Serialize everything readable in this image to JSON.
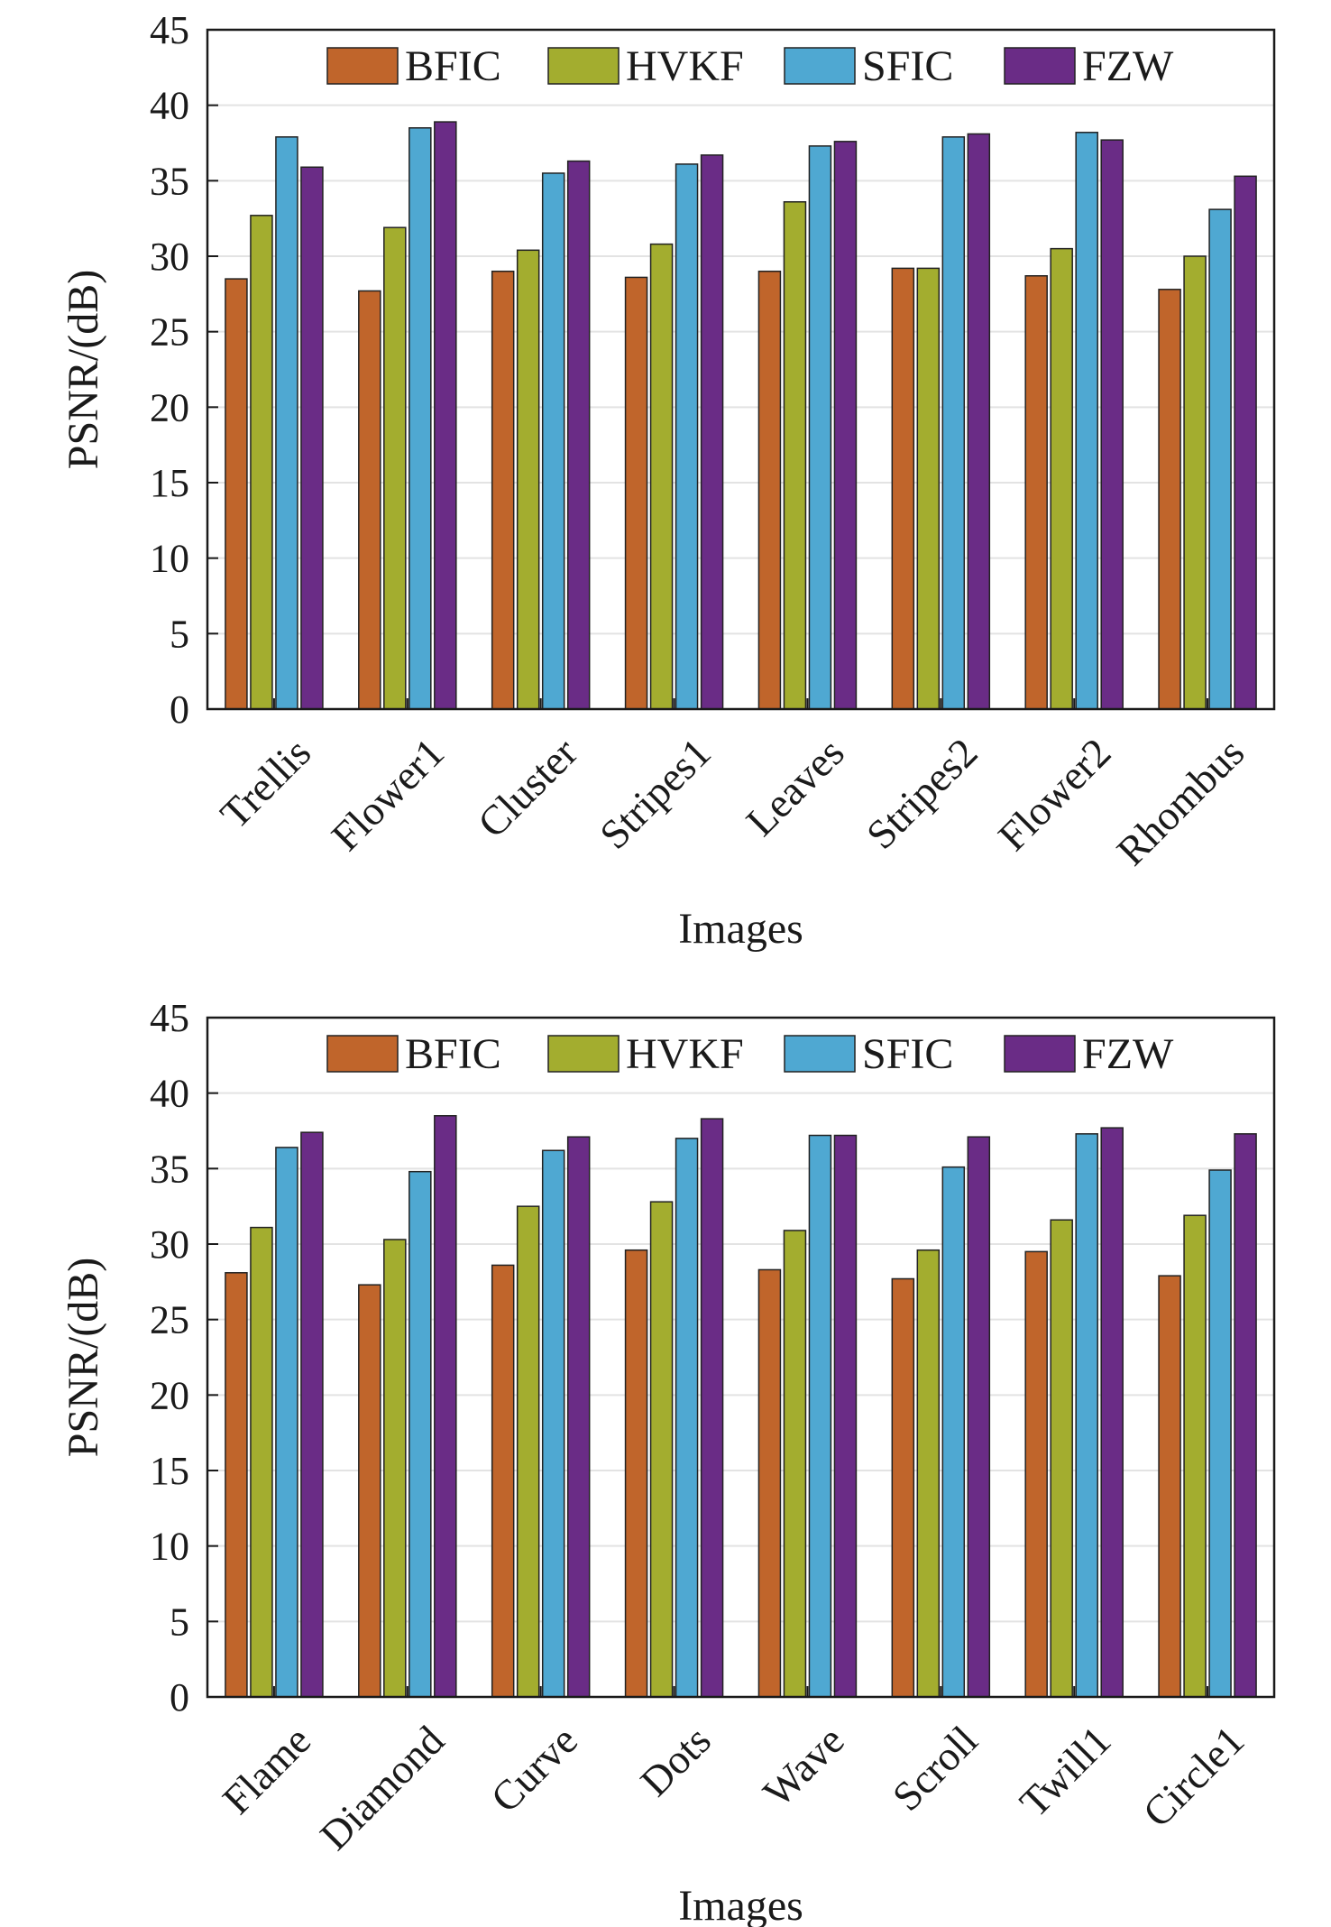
{
  "colors": {
    "BFIC": "#c0652b",
    "HVKF": "#a3ad2f",
    "SFIC": "#4fa8d2",
    "FZW": "#6a2c86",
    "grid": "#e3e3e3",
    "axis": "#1a1a1a"
  },
  "chart_data": [
    {
      "type": "bar",
      "title": "",
      "xlabel": "Images",
      "ylabel": "PSNR/(dB)",
      "ylim": [
        0,
        45
      ],
      "yticks": [
        "0",
        "5",
        "10",
        "15",
        "20",
        "25",
        "30",
        "35",
        "40",
        "45"
      ],
      "grid": "horizontal",
      "legend_position": "top",
      "categories": [
        "Trellis",
        "Flower1",
        "Cluster",
        "Stripes1",
        "Leaves",
        "Stripes2",
        "Flower2",
        "Rhombus"
      ],
      "series": [
        {
          "name": "BFIC",
          "values": [
            28.5,
            27.7,
            29.0,
            28.6,
            29.0,
            29.2,
            28.7,
            27.8
          ]
        },
        {
          "name": "HVKF",
          "values": [
            32.7,
            31.9,
            30.4,
            30.8,
            33.6,
            29.2,
            30.5,
            30.0
          ]
        },
        {
          "name": "SFIC",
          "values": [
            37.9,
            38.5,
            35.5,
            36.1,
            37.3,
            37.9,
            38.2,
            33.1
          ]
        },
        {
          "name": "FZW",
          "values": [
            35.9,
            38.9,
            36.3,
            36.7,
            37.6,
            38.1,
            37.7,
            35.3
          ]
        }
      ]
    },
    {
      "type": "bar",
      "title": "",
      "xlabel": "Images",
      "ylabel": "PSNR/(dB)",
      "ylim": [
        0,
        45
      ],
      "yticks": [
        "0",
        "5",
        "10",
        "15",
        "20",
        "25",
        "30",
        "35",
        "40",
        "45"
      ],
      "grid": "horizontal",
      "legend_position": "top",
      "categories": [
        "Flame",
        "Diamond",
        "Curve",
        "Dots",
        "Wave",
        "Scroll",
        "Twill1",
        "Circle1"
      ],
      "series": [
        {
          "name": "BFIC",
          "values": [
            28.1,
            27.3,
            28.6,
            29.6,
            28.3,
            27.7,
            29.5,
            27.9
          ]
        },
        {
          "name": "HVKF",
          "values": [
            31.1,
            30.3,
            32.5,
            32.8,
            30.9,
            29.6,
            31.6,
            31.9
          ]
        },
        {
          "name": "SFIC",
          "values": [
            36.4,
            34.8,
            36.2,
            37.0,
            37.2,
            35.1,
            37.3,
            34.9
          ]
        },
        {
          "name": "FZW",
          "values": [
            37.4,
            38.5,
            37.1,
            38.3,
            37.2,
            37.1,
            37.7,
            37.3
          ]
        }
      ]
    }
  ]
}
